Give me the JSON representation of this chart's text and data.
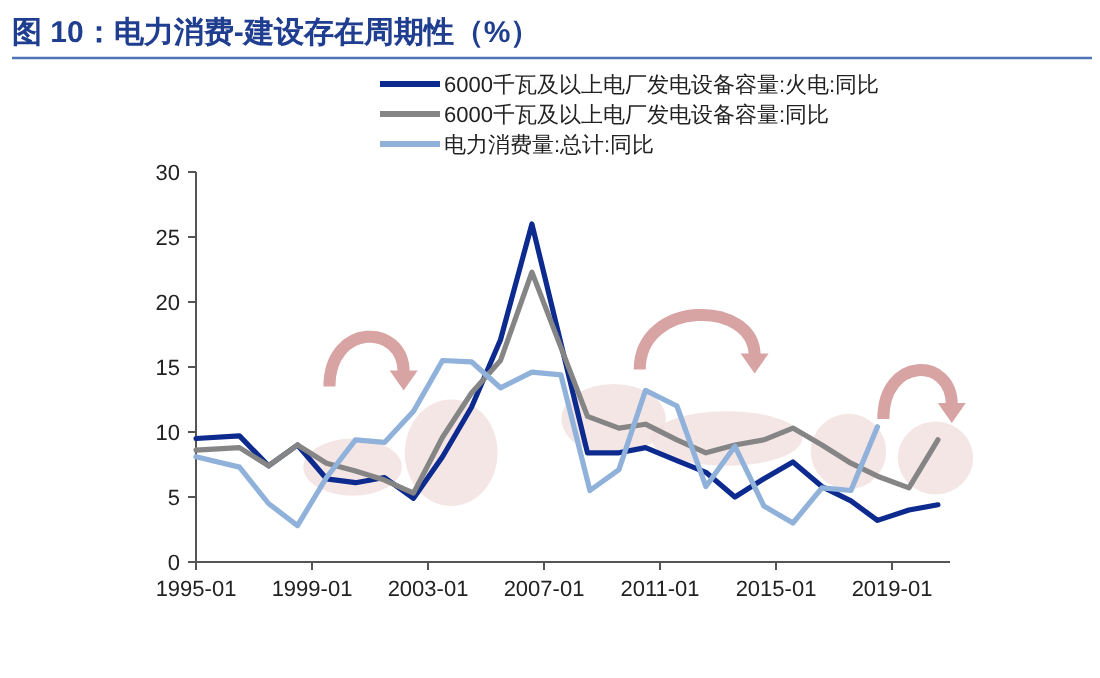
{
  "chart_data": {
    "type": "line",
    "title": "图 10：电力消费-建设存在周期性（%）",
    "xlim": [
      "1995-01",
      "2021-01"
    ],
    "ylim": [
      0,
      30
    ],
    "yticks": [
      0,
      5,
      10,
      15,
      20,
      25,
      30
    ],
    "xticks": [
      "1995-01",
      "1999-01",
      "2003-01",
      "2007-01",
      "2011-01",
      "2015-01",
      "2019-01"
    ],
    "legend": "top",
    "grid": false,
    "line_style": "solid",
    "marker": "none",
    "series": [
      {
        "name": "6000千瓦及以上电厂发电设备容量:火电:同比",
        "color": "#0d2a8e",
        "x": [
          "1995-01",
          "1996-07",
          "1997-07",
          "1998-07",
          "1999-07",
          "2000-07",
          "2001-07",
          "2002-07",
          "2003-07",
          "2004-07",
          "2005-07",
          "2006-08",
          "2008-07",
          "2009-08",
          "2010-07",
          "2011-08",
          "2012-08",
          "2013-08",
          "2014-08",
          "2015-08",
          "2016-08",
          "2017-08",
          "2018-07",
          "2019-08",
          "2020-08"
        ],
        "values": [
          9.5,
          9.7,
          7.4,
          9.0,
          6.4,
          6.1,
          6.5,
          4.9,
          8.1,
          11.9,
          17.1,
          26.0,
          8.4,
          8.4,
          8.8,
          7.8,
          6.9,
          5.0,
          6.4,
          7.7,
          5.8,
          4.7,
          3.2,
          4.0,
          4.4
        ]
      },
      {
        "name": "6000千瓦及以上电厂发电设备容量:同比",
        "color": "#858585",
        "x": [
          "1995-01",
          "1996-07",
          "1997-07",
          "1998-07",
          "1999-07",
          "2000-07",
          "2001-07",
          "2002-07",
          "2003-07",
          "2004-07",
          "2005-07",
          "2006-08",
          "2008-07",
          "2009-08",
          "2010-07",
          "2011-08",
          "2012-08",
          "2013-08",
          "2014-08",
          "2015-08",
          "2016-08",
          "2017-08",
          "2018-07",
          "2019-08",
          "2020-08"
        ],
        "values": [
          8.6,
          8.8,
          7.4,
          9.0,
          7.6,
          7.0,
          6.3,
          5.3,
          9.6,
          13.0,
          15.5,
          22.3,
          11.2,
          10.3,
          10.6,
          9.4,
          8.4,
          9.0,
          9.4,
          10.3,
          9.0,
          7.6,
          6.6,
          5.7,
          9.4
        ]
      },
      {
        "name": "电力消费量:总计:同比",
        "color": "#8fb1da",
        "x": [
          "1995-01",
          "1996-07",
          "1997-07",
          "1998-07",
          "1999-07",
          "2000-07",
          "2001-07",
          "2002-07",
          "2003-07",
          "2004-07",
          "2005-07",
          "2006-08",
          "2007-08",
          "2008-08",
          "2009-08",
          "2010-07",
          "2011-08",
          "2012-08",
          "2013-08",
          "2014-08",
          "2015-08",
          "2016-08",
          "2017-08",
          "2018-07"
        ],
        "values": [
          8.1,
          7.3,
          4.5,
          2.8,
          6.5,
          9.4,
          9.2,
          11.6,
          15.5,
          15.4,
          13.4,
          14.6,
          14.4,
          5.5,
          7.1,
          13.2,
          12.0,
          5.8,
          8.9,
          4.3,
          3.0,
          5.7,
          5.5,
          10.4
        ]
      }
    ]
  }
}
